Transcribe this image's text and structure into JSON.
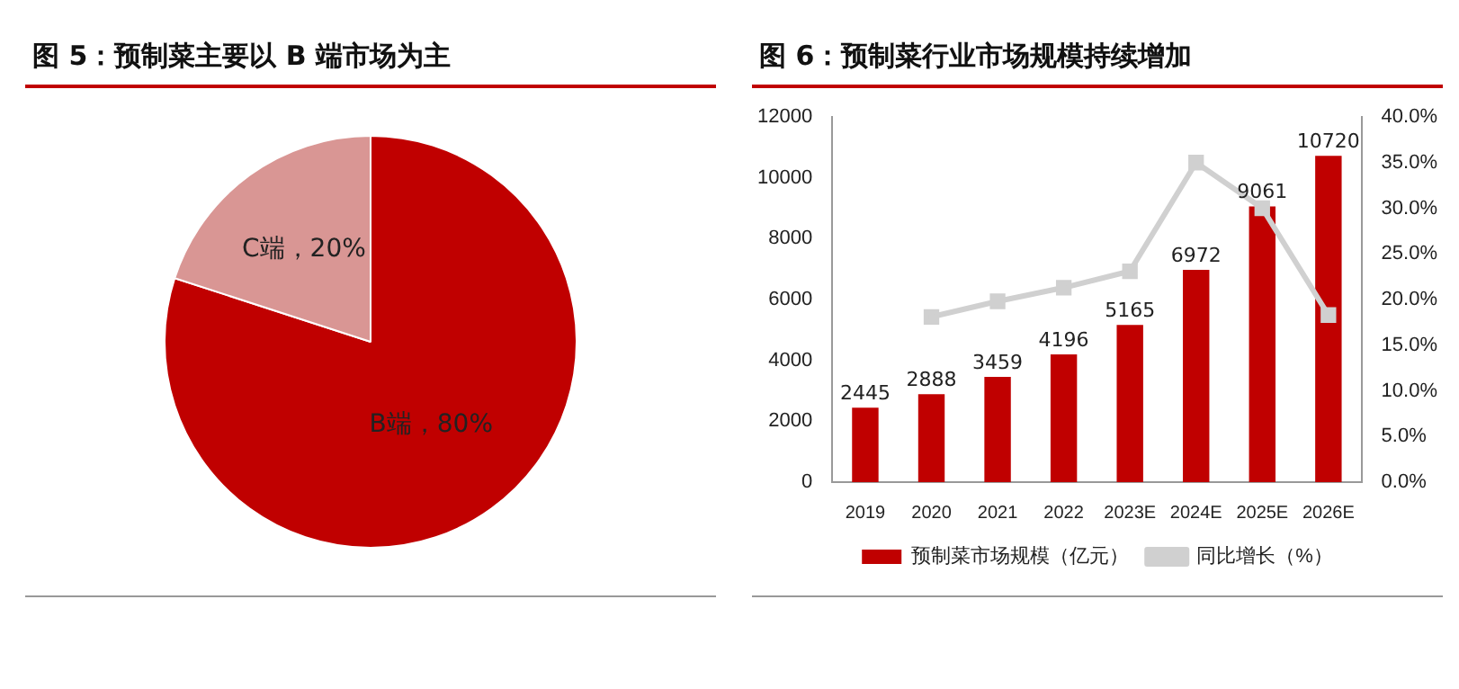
{
  "chart_data": [
    {
      "type": "pie",
      "title": "图 5：预制菜主要以 B 端市场为主",
      "categories": [
        "B端",
        "C端"
      ],
      "values": [
        80,
        20
      ],
      "colors": [
        "#c00000",
        "#d99694"
      ],
      "value_labels": [
        "，80%",
        "，20%"
      ],
      "legend": false
    },
    {
      "type": "bar",
      "title": "图 6：预制菜行业市场规模持续增加",
      "categories": [
        "2019",
        "2020",
        "2021",
        "2022",
        "2023E",
        "2024E",
        "2025E",
        "2026E"
      ],
      "series": [
        {
          "name": "预制菜市场规模（亿元）",
          "color": "#c00000",
          "values": [
            2445,
            2888,
            3459,
            4196,
            5165,
            6972,
            9061,
            10720
          ],
          "value_labels": [
            "2445",
            "2888",
            "3459",
            "4196",
            "5165",
            "6972",
            "9061",
            "10720"
          ]
        },
        {
          "name": "同比增长（%）",
          "type": "line",
          "axis": "y2",
          "color": "#d0d0d0",
          "marker": "square",
          "values": [
            null,
            18.1,
            19.8,
            21.3,
            23.1,
            35.0,
            30.0,
            18.3
          ]
        }
      ],
      "ylim": [
        0,
        12000
      ],
      "yticks": [
        0,
        2000,
        4000,
        6000,
        8000,
        10000,
        12000
      ],
      "y2lim": [
        0,
        40
      ],
      "y2ticks": [
        {
          "value": 0,
          "label": "0.0%"
        },
        {
          "value": 5,
          "label": "5.0%"
        },
        {
          "value": 10,
          "label": "10.0%"
        },
        {
          "value": 15,
          "label": "15.0%"
        },
        {
          "value": 20,
          "label": "20.0%"
        },
        {
          "value": 25,
          "label": "25.0%"
        },
        {
          "value": 30,
          "label": "30.0%"
        },
        {
          "value": 35,
          "label": "35.0%"
        },
        {
          "value": 40,
          "label": "40.0%"
        }
      ],
      "legend": "bottom",
      "grid": false
    }
  ]
}
